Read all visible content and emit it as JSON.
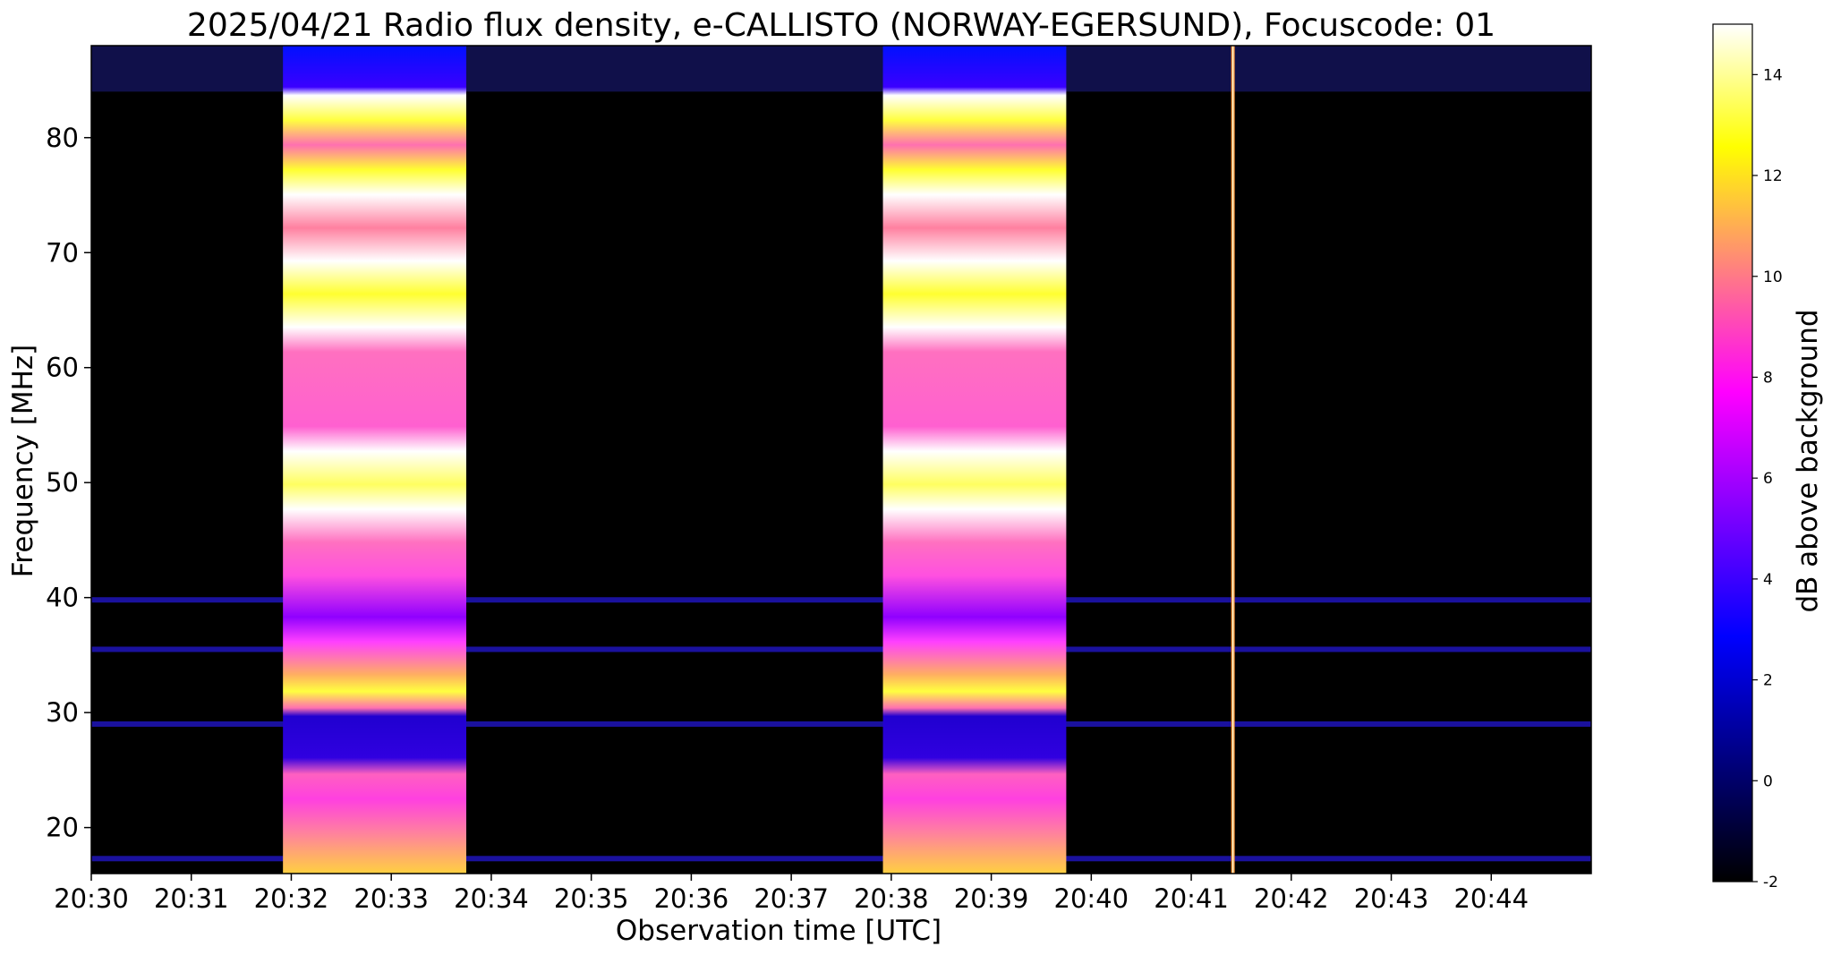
{
  "chart_data": {
    "type": "heatmap",
    "title": "2025/04/21  Radio flux density, e-CALLISTO (NORWAY-EGERSUND), Focuscode: 01",
    "xlabel": "Observation time [UTC]",
    "ylabel": "Frequency [MHz]",
    "xlim": [
      "20:30:00",
      "20:45:00"
    ],
    "ylim": [
      16,
      88
    ],
    "x_ticks": [
      "20:30",
      "20:31",
      "20:32",
      "20:33",
      "20:34",
      "20:35",
      "20:36",
      "20:37",
      "20:38",
      "20:39",
      "20:40",
      "20:41",
      "20:42",
      "20:43",
      "20:44"
    ],
    "y_ticks": [
      20,
      30,
      40,
      50,
      60,
      70,
      80
    ],
    "colorbar": {
      "label": "dB above background",
      "range": [
        -2,
        15
      ],
      "ticks": [
        -2,
        0,
        2,
        4,
        6,
        8,
        10,
        12,
        14
      ],
      "colormap": "gnuplot2",
      "colors": [
        "#000000",
        "#000080",
        "#0000ff",
        "#7f00ff",
        "#ff00ff",
        "#ff8080",
        "#ffff00",
        "#ffffff"
      ]
    },
    "features": [
      {
        "kind": "broadband_burst",
        "start": "20:31:55",
        "end": "20:33:45",
        "freq_range": [
          16,
          88
        ]
      },
      {
        "kind": "broadband_burst",
        "start": "20:37:55",
        "end": "20:39:45",
        "freq_range": [
          16,
          88
        ]
      },
      {
        "kind": "narrow_spike",
        "time": "20:41:25",
        "freq_range": [
          16,
          88
        ]
      },
      {
        "kind": "interference_line",
        "freq": 39.8
      },
      {
        "kind": "interference_line",
        "freq": 35.5
      },
      {
        "kind": "interference_line",
        "freq": 29.0
      },
      {
        "kind": "interference_line",
        "freq": 17.3
      },
      {
        "kind": "interference_band",
        "freq_range": [
          84,
          88
        ]
      }
    ]
  }
}
